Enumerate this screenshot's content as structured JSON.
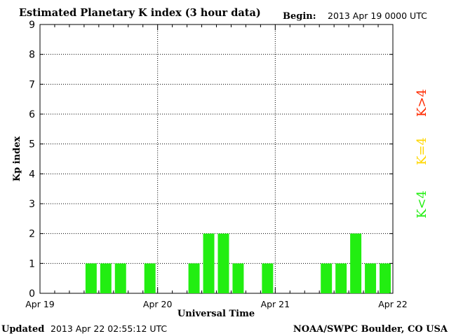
{
  "header": {
    "title": "Estimated Planetary K index (3 hour data)",
    "begin_label": "Begin:",
    "begin_value": "2013 Apr 19 0000 UTC"
  },
  "footer": {
    "updated_label": "Updated",
    "updated_value": "2013 Apr 22 02:55:12 UTC",
    "credit": "NOAA/SWPC Boulder, CO USA"
  },
  "legend": {
    "items": [
      {
        "label": "K>4",
        "color": "#ff2a00"
      },
      {
        "label": "K=4",
        "color": "#ffd700"
      },
      {
        "label": "K<4",
        "color": "#22ee11"
      }
    ]
  },
  "chart_data": {
    "type": "bar",
    "title": "Estimated Planetary K index (3 hour data)",
    "xlabel": "Universal Time",
    "ylabel": "Kp index",
    "ylim": [
      0,
      9
    ],
    "yticks": [
      0,
      1,
      2,
      3,
      4,
      5,
      6,
      7,
      8,
      9
    ],
    "xtick_labels": [
      "Apr 19",
      "Apr 20",
      "Apr 21",
      "Apr 22"
    ],
    "interval_hours": 3,
    "grid": true,
    "bar_color": "#22ee11",
    "values": [
      0,
      0,
      0,
      1,
      1,
      1,
      0,
      1,
      0,
      0,
      1,
      2,
      2,
      1,
      0,
      1,
      0,
      0,
      0,
      1,
      1,
      2,
      1,
      1
    ]
  }
}
